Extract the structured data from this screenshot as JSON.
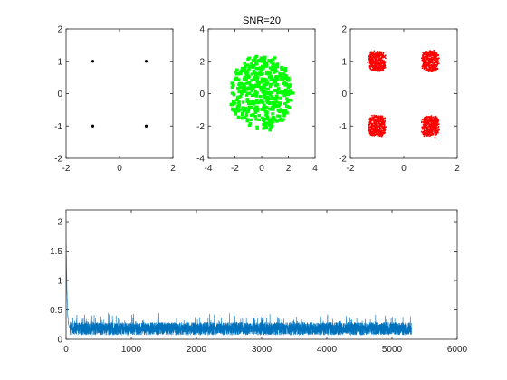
{
  "chart_data": [
    {
      "type": "scatter",
      "title": "",
      "xlim": [
        -2,
        2
      ],
      "ylim": [
        -2,
        2
      ],
      "xticks": [
        -2,
        0,
        2
      ],
      "yticks": [
        -2,
        -1,
        0,
        1,
        2
      ],
      "xtick_labels": [
        "-2",
        "0",
        "2"
      ],
      "ytick_labels": [
        "-2",
        "-1",
        "0",
        "1",
        "2"
      ],
      "marker_color": "#000000",
      "points": [
        [
          -1,
          1
        ],
        [
          1,
          1
        ],
        [
          -1,
          -1
        ],
        [
          1,
          -1
        ]
      ]
    },
    {
      "type": "scatter",
      "title": "SNR=20",
      "xlim": [
        -4,
        4
      ],
      "ylim": [
        -4,
        4
      ],
      "xticks": [
        -4,
        -2,
        0,
        2,
        4
      ],
      "yticks": [
        -4,
        -2,
        0,
        2,
        4
      ],
      "xtick_labels": [
        "-4",
        "-2",
        "0",
        "2",
        "4"
      ],
      "ytick_labels": [
        "-4",
        "-2",
        "0",
        "2",
        "4"
      ],
      "marker_color": "#00ff00",
      "cloud": {
        "center": [
          0,
          0
        ],
        "x_spread": 2.3,
        "y_spread": 2.3,
        "count": 480
      }
    },
    {
      "type": "scatter",
      "title": "",
      "xlim": [
        -2,
        2
      ],
      "ylim": [
        -2,
        2
      ],
      "xticks": [
        -2,
        0,
        2
      ],
      "yticks": [
        -2,
        -1,
        0,
        1,
        2
      ],
      "xtick_labels": [
        "-2",
        "0",
        "2"
      ],
      "ytick_labels": [
        "-2",
        "-1",
        "0",
        "1",
        "2"
      ],
      "marker_color": "#ff0000",
      "clusters": [
        {
          "center": [
            -1,
            1
          ],
          "spread": 0.3
        },
        {
          "center": [
            1,
            1
          ],
          "spread": 0.3
        },
        {
          "center": [
            -1,
            -1
          ],
          "spread": 0.3
        },
        {
          "center": [
            1,
            -1
          ],
          "spread": 0.3
        }
      ],
      "points_per_cluster": 420
    },
    {
      "type": "line",
      "title": "",
      "xlim": [
        0,
        6000
      ],
      "ylim": [
        0,
        2.2
      ],
      "xticks": [
        0,
        1000,
        2000,
        3000,
        4000,
        5000,
        6000
      ],
      "yticks": [
        0,
        0.5,
        1,
        1.5,
        2
      ],
      "xtick_labels": [
        "0",
        "1000",
        "2000",
        "3000",
        "4000",
        "5000",
        "6000"
      ],
      "ytick_labels": [
        "0",
        "0.5",
        "1",
        "1.5",
        "2"
      ],
      "line_color": "#0072bd",
      "series": {
        "n_points": 5300,
        "initial_peak": 2.2,
        "decay_until": 60,
        "steady_mean": 0.18,
        "steady_max": 0.45
      }
    }
  ]
}
